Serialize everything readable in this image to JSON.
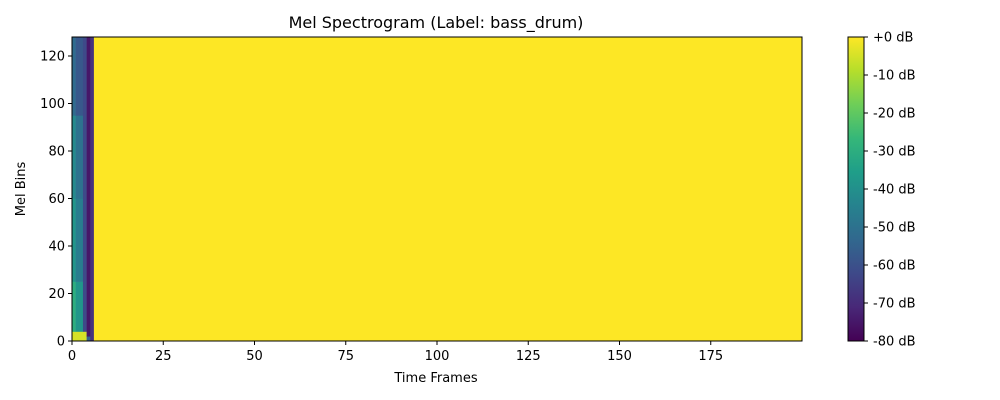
{
  "chart_data": {
    "type": "heatmap",
    "title": "Mel Spectrogram (Label: bass_drum)",
    "xlabel": "Time Frames",
    "ylabel": "Mel Bins",
    "xlim": [
      0,
      200
    ],
    "ylim": [
      0,
      128
    ],
    "xticks": [
      0,
      25,
      50,
      75,
      100,
      125,
      150,
      175
    ],
    "yticks": [
      0,
      20,
      40,
      60,
      80,
      100,
      120
    ],
    "colorbar": {
      "vmin": -80,
      "vmax": 0,
      "ticks": [
        0,
        -10,
        -20,
        -30,
        -40,
        -50,
        -60,
        -70,
        -80
      ],
      "tick_labels": [
        "+0 dB",
        "-10 dB",
        "-20 dB",
        "-30 dB",
        "-40 dB",
        "-50 dB",
        "-60 dB",
        "-70 dB",
        "-80 dB"
      ],
      "colormap": [
        "#440154",
        "#482878",
        "#3e4989",
        "#31688e",
        "#26828e",
        "#1f9e89",
        "#35b779",
        "#6ece58",
        "#b5de2b",
        "#fde725"
      ]
    },
    "segments": [
      {
        "x_start": 0,
        "x_end": 4,
        "y_start": 0,
        "y_end": 4,
        "db": -5
      },
      {
        "x_start": 0,
        "x_end": 1,
        "y_start": 4,
        "y_end": 25,
        "db": -30
      },
      {
        "x_start": 0,
        "x_end": 1,
        "y_start": 25,
        "y_end": 60,
        "db": -38
      },
      {
        "x_start": 0,
        "x_end": 1,
        "y_start": 60,
        "y_end": 95,
        "db": -42
      },
      {
        "x_start": 0,
        "x_end": 1,
        "y_start": 95,
        "y_end": 128,
        "db": -52
      },
      {
        "x_start": 1,
        "x_end": 3,
        "y_start": 4,
        "y_end": 25,
        "db": -38
      },
      {
        "x_start": 1,
        "x_end": 3,
        "y_start": 25,
        "y_end": 60,
        "db": -46
      },
      {
        "x_start": 1,
        "x_end": 3,
        "y_start": 60,
        "y_end": 95,
        "db": -50
      },
      {
        "x_start": 1,
        "x_end": 3,
        "y_start": 95,
        "y_end": 128,
        "db": -58
      },
      {
        "x_start": 3,
        "x_end": 4,
        "y_start": 4,
        "y_end": 128,
        "db": -62
      },
      {
        "x_start": 4,
        "x_end": 5,
        "y_start": 0,
        "y_end": 2,
        "db": -55
      },
      {
        "x_start": 4,
        "x_end": 5,
        "y_start": 2,
        "y_end": 128,
        "db": -75
      },
      {
        "x_start": 5,
        "x_end": 6,
        "y_start": 0,
        "y_end": 128,
        "db": -68
      },
      {
        "x_start": 6,
        "x_end": 200,
        "y_start": 0,
        "y_end": 128,
        "db": 0
      }
    ]
  }
}
